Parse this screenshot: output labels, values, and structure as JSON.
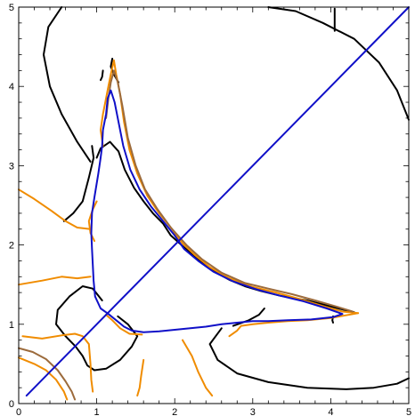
{
  "chart_data": {
    "type": "line",
    "title": "",
    "xlabel": "",
    "ylabel": "",
    "xlim": [
      0,
      5
    ],
    "ylim": [
      0,
      5
    ],
    "x_ticks": [
      "0",
      "1",
      "2",
      "3",
      "4",
      "5"
    ],
    "y_ticks": [
      "0",
      "1",
      "2",
      "3",
      "4",
      "5"
    ],
    "grid": false,
    "legend": "none",
    "colors": {
      "black": "#000000",
      "orange": "#f08c00",
      "brown": "#9c6b3c",
      "blue": "#1010c8"
    },
    "series": [
      {
        "color": "black",
        "segments": [
          [
            [
              0.55,
              5.0
            ],
            [
              0.38,
              4.75
            ],
            [
              0.32,
              4.4
            ],
            [
              0.4,
              4.0
            ],
            [
              0.55,
              3.65
            ],
            [
              0.75,
              3.3
            ],
            [
              0.92,
              3.05
            ]
          ]
        ]
      },
      {
        "color": "black",
        "segments": [
          [
            [
              3.2,
              5.0
            ],
            [
              3.55,
              4.95
            ],
            [
              3.9,
              4.8
            ],
            [
              4.3,
              4.6
            ],
            [
              4.62,
              4.3
            ],
            [
              4.85,
              3.95
            ],
            [
              5.0,
              3.58
            ]
          ]
        ]
      },
      {
        "color": "black",
        "segments": [
          [
            [
              4.05,
              4.98
            ],
            [
              4.05,
              4.85
            ],
            [
              4.05,
              4.7
            ]
          ]
        ]
      },
      {
        "color": "black",
        "segments": [
          [
            [
              0.94,
              3.25
            ],
            [
              0.96,
              3.1
            ],
            [
              0.9,
              2.85
            ],
            [
              0.82,
              2.55
            ],
            [
              0.7,
              2.4
            ],
            [
              0.58,
              2.3
            ]
          ]
        ]
      },
      {
        "color": "black",
        "segments": [
          [
            [
              1.0,
              3.1
            ],
            [
              1.05,
              3.22
            ],
            [
              1.17,
              3.3
            ],
            [
              1.28,
              3.18
            ],
            [
              1.36,
              2.95
            ],
            [
              1.48,
              2.72
            ],
            [
              1.6,
              2.55
            ],
            [
              1.72,
              2.4
            ],
            [
              1.85,
              2.27
            ],
            [
              1.95,
              2.12
            ],
            [
              2.12,
              1.97
            ],
            [
              2.3,
              1.82
            ],
            [
              2.5,
              1.67
            ],
            [
              2.7,
              1.56
            ],
            [
              2.9,
              1.48
            ],
            [
              3.1,
              1.42
            ],
            [
              3.35,
              1.36
            ],
            [
              3.7,
              1.3
            ],
            [
              4.1,
              1.2
            ],
            [
              4.3,
              1.15
            ]
          ]
        ]
      },
      {
        "color": "black",
        "segments": [
          [
            [
              4.03,
              1.1
            ],
            [
              4.02,
              1.05
            ],
            [
              4.03,
              1.02
            ]
          ]
        ]
      },
      {
        "color": "black",
        "segments": [
          [
            [
              1.07,
              1.3
            ],
            [
              0.95,
              1.45
            ],
            [
              0.82,
              1.48
            ],
            [
              0.65,
              1.35
            ],
            [
              0.5,
              1.18
            ],
            [
              0.48,
              1.0
            ],
            [
              0.6,
              0.85
            ],
            [
              0.73,
              0.72
            ],
            [
              0.82,
              0.6
            ],
            [
              0.88,
              0.48
            ],
            [
              0.97,
              0.42
            ],
            [
              1.12,
              0.44
            ],
            [
              1.3,
              0.55
            ],
            [
              1.45,
              0.72
            ],
            [
              1.52,
              0.85
            ],
            [
              1.4,
              1.0
            ],
            [
              1.27,
              1.1
            ]
          ]
        ]
      },
      {
        "color": "black",
        "segments": [
          [
            [
              2.6,
              0.95
            ],
            [
              2.45,
              0.75
            ],
            [
              2.55,
              0.55
            ],
            [
              2.8,
              0.38
            ],
            [
              3.2,
              0.27
            ],
            [
              3.7,
              0.2
            ],
            [
              4.2,
              0.18
            ],
            [
              4.55,
              0.2
            ],
            [
              4.85,
              0.25
            ],
            [
              5.0,
              0.32
            ]
          ]
        ]
      },
      {
        "color": "black",
        "segments": [
          [
            [
              2.75,
              0.98
            ],
            [
              2.95,
              1.05
            ],
            [
              3.08,
              1.12
            ],
            [
              3.15,
              1.2
            ]
          ]
        ]
      },
      {
        "color": "black",
        "segments": [
          [
            [
              1.2,
              4.35
            ],
            [
              1.18,
              4.25
            ],
            [
              1.22,
              4.15
            ],
            [
              1.28,
              4.05
            ]
          ],
          [
            [
              1.08,
              4.2
            ],
            [
              1.07,
              4.12
            ],
            [
              1.05,
              4.08
            ]
          ]
        ]
      },
      {
        "color": "orange",
        "segments": [
          [
            [
              0.0,
              2.7
            ],
            [
              0.2,
              2.58
            ],
            [
              0.42,
              2.43
            ],
            [
              0.6,
              2.3
            ],
            [
              0.75,
              2.22
            ],
            [
              0.92,
              2.2
            ]
          ]
        ]
      },
      {
        "color": "orange",
        "segments": [
          [
            [
              0.0,
              1.5
            ],
            [
              0.3,
              1.55
            ],
            [
              0.55,
              1.6
            ],
            [
              0.75,
              1.58
            ],
            [
              0.92,
              1.6
            ]
          ]
        ]
      },
      {
        "color": "orange",
        "segments": [
          [
            [
              0.0,
              0.58
            ],
            [
              0.2,
              0.5
            ],
            [
              0.35,
              0.42
            ],
            [
              0.48,
              0.3
            ],
            [
              0.58,
              0.15
            ],
            [
              0.62,
              0.05
            ]
          ]
        ]
      },
      {
        "color": "orange",
        "segments": [
          [
            [
              0.05,
              0.85
            ],
            [
              0.3,
              0.82
            ],
            [
              0.55,
              0.86
            ],
            [
              0.72,
              0.88
            ],
            [
              0.82,
              0.85
            ],
            [
              0.9,
              0.75
            ],
            [
              0.92,
              0.5
            ],
            [
              0.93,
              0.3
            ],
            [
              0.95,
              0.15
            ]
          ]
        ]
      },
      {
        "color": "orange",
        "segments": [
          [
            [
              1.08,
              3.25
            ],
            [
              1.05,
              3.45
            ],
            [
              1.08,
              3.65
            ],
            [
              1.12,
              3.85
            ],
            [
              1.15,
              4.0
            ],
            [
              1.18,
              4.15
            ],
            [
              1.22,
              4.33
            ],
            [
              1.25,
              4.15
            ],
            [
              1.3,
              3.9
            ],
            [
              1.35,
              3.55
            ],
            [
              1.42,
              3.2
            ],
            [
              1.52,
              2.9
            ],
            [
              1.65,
              2.62
            ],
            [
              1.8,
              2.4
            ],
            [
              1.95,
              2.22
            ],
            [
              2.1,
              2.02
            ],
            [
              2.25,
              1.88
            ],
            [
              2.45,
              1.72
            ],
            [
              2.7,
              1.58
            ],
            [
              3.0,
              1.47
            ],
            [
              3.3,
              1.4
            ],
            [
              3.6,
              1.32
            ],
            [
              3.9,
              1.23
            ],
            [
              4.15,
              1.16
            ],
            [
              4.35,
              1.14
            ]
          ]
        ]
      },
      {
        "color": "orange",
        "segments": [
          [
            [
              4.35,
              1.14
            ],
            [
              4.0,
              1.08
            ],
            [
              3.7,
              1.05
            ],
            [
              3.45,
              1.04
            ],
            [
              3.2,
              1.02
            ],
            [
              3.0,
              1.0
            ],
            [
              2.85,
              0.98
            ],
            [
              2.8,
              0.92
            ],
            [
              2.7,
              0.85
            ]
          ]
        ]
      },
      {
        "color": "orange",
        "segments": [
          [
            [
              1.12,
              1.12
            ],
            [
              1.2,
              1.05
            ],
            [
              1.3,
              0.95
            ],
            [
              1.42,
              0.88
            ],
            [
              1.58,
              0.87
            ]
          ]
        ]
      },
      {
        "color": "orange",
        "segments": [
          [
            [
              1.6,
              0.55
            ],
            [
              1.57,
              0.35
            ],
            [
              1.55,
              0.2
            ],
            [
              1.52,
              0.1
            ]
          ]
        ]
      },
      {
        "color": "orange",
        "segments": [
          [
            [
              2.1,
              0.8
            ],
            [
              2.22,
              0.6
            ],
            [
              2.3,
              0.4
            ],
            [
              2.4,
              0.2
            ],
            [
              2.48,
              0.1
            ]
          ]
        ]
      },
      {
        "color": "orange",
        "segments": [
          [
            [
              1.0,
              2.55
            ],
            [
              0.95,
              2.45
            ],
            [
              0.9,
              2.3
            ],
            [
              0.92,
              2.15
            ],
            [
              0.97,
              2.05
            ]
          ]
        ]
      },
      {
        "color": "brown",
        "segments": [
          [
            [
              0.0,
              0.7
            ],
            [
              0.18,
              0.65
            ],
            [
              0.35,
              0.56
            ],
            [
              0.5,
              0.42
            ],
            [
              0.6,
              0.28
            ],
            [
              0.68,
              0.15
            ],
            [
              0.72,
              0.05
            ]
          ]
        ]
      },
      {
        "color": "brown",
        "segments": [
          [
            [
              1.12,
              3.6
            ],
            [
              1.15,
              3.85
            ],
            [
              1.18,
              4.05
            ],
            [
              1.22,
              4.2
            ],
            [
              1.27,
              4.05
            ],
            [
              1.33,
              3.75
            ],
            [
              1.4,
              3.35
            ],
            [
              1.5,
              3.0
            ],
            [
              1.62,
              2.7
            ],
            [
              1.78,
              2.45
            ],
            [
              1.95,
              2.22
            ],
            [
              2.15,
              2.0
            ],
            [
              2.35,
              1.82
            ],
            [
              2.6,
              1.65
            ],
            [
              2.9,
              1.52
            ],
            [
              3.2,
              1.45
            ],
            [
              3.5,
              1.38
            ],
            [
              3.8,
              1.3
            ],
            [
              4.05,
              1.23
            ],
            [
              4.28,
              1.16
            ]
          ]
        ]
      },
      {
        "color": "blue",
        "segments": [
          [
            [
              0.1,
              0.1
            ],
            [
              5.0,
              5.0
            ]
          ]
        ]
      },
      {
        "color": "blue",
        "segments": [
          [
            [
              1.07,
              3.25
            ],
            [
              1.08,
              3.45
            ],
            [
              1.12,
              3.65
            ],
            [
              1.14,
              3.85
            ],
            [
              1.18,
              3.95
            ],
            [
              1.23,
              3.8
            ],
            [
              1.28,
              3.55
            ],
            [
              1.34,
              3.25
            ],
            [
              1.43,
              2.95
            ],
            [
              1.55,
              2.7
            ],
            [
              1.7,
              2.48
            ],
            [
              1.85,
              2.3
            ],
            [
              2.0,
              2.12
            ],
            [
              2.12,
              1.95
            ],
            [
              2.3,
              1.8
            ],
            [
              2.5,
              1.66
            ],
            [
              2.75,
              1.54
            ],
            [
              3.05,
              1.44
            ],
            [
              3.35,
              1.36
            ],
            [
              3.65,
              1.29
            ],
            [
              3.95,
              1.2
            ],
            [
              4.15,
              1.13
            ],
            [
              4.03,
              1.09
            ],
            [
              3.75,
              1.06
            ],
            [
              3.45,
              1.05
            ],
            [
              3.2,
              1.04
            ],
            [
              3.0,
              1.04
            ],
            [
              2.8,
              1.02
            ],
            [
              2.6,
              1.0
            ],
            [
              2.4,
              0.97
            ],
            [
              2.2,
              0.95
            ],
            [
              2.0,
              0.93
            ],
            [
              1.8,
              0.91
            ],
            [
              1.6,
              0.9
            ],
            [
              1.45,
              0.92
            ],
            [
              1.35,
              0.97
            ],
            [
              1.25,
              1.05
            ],
            [
              1.15,
              1.13
            ],
            [
              1.05,
              1.2
            ],
            [
              0.98,
              1.35
            ],
            [
              0.96,
              1.55
            ],
            [
              0.95,
              1.75
            ],
            [
              0.94,
              1.95
            ],
            [
              0.93,
              2.15
            ],
            [
              0.94,
              2.4
            ],
            [
              0.97,
              2.6
            ],
            [
              1.02,
              2.9
            ],
            [
              1.05,
              3.1
            ],
            [
              1.07,
              3.25
            ]
          ]
        ]
      }
    ]
  }
}
